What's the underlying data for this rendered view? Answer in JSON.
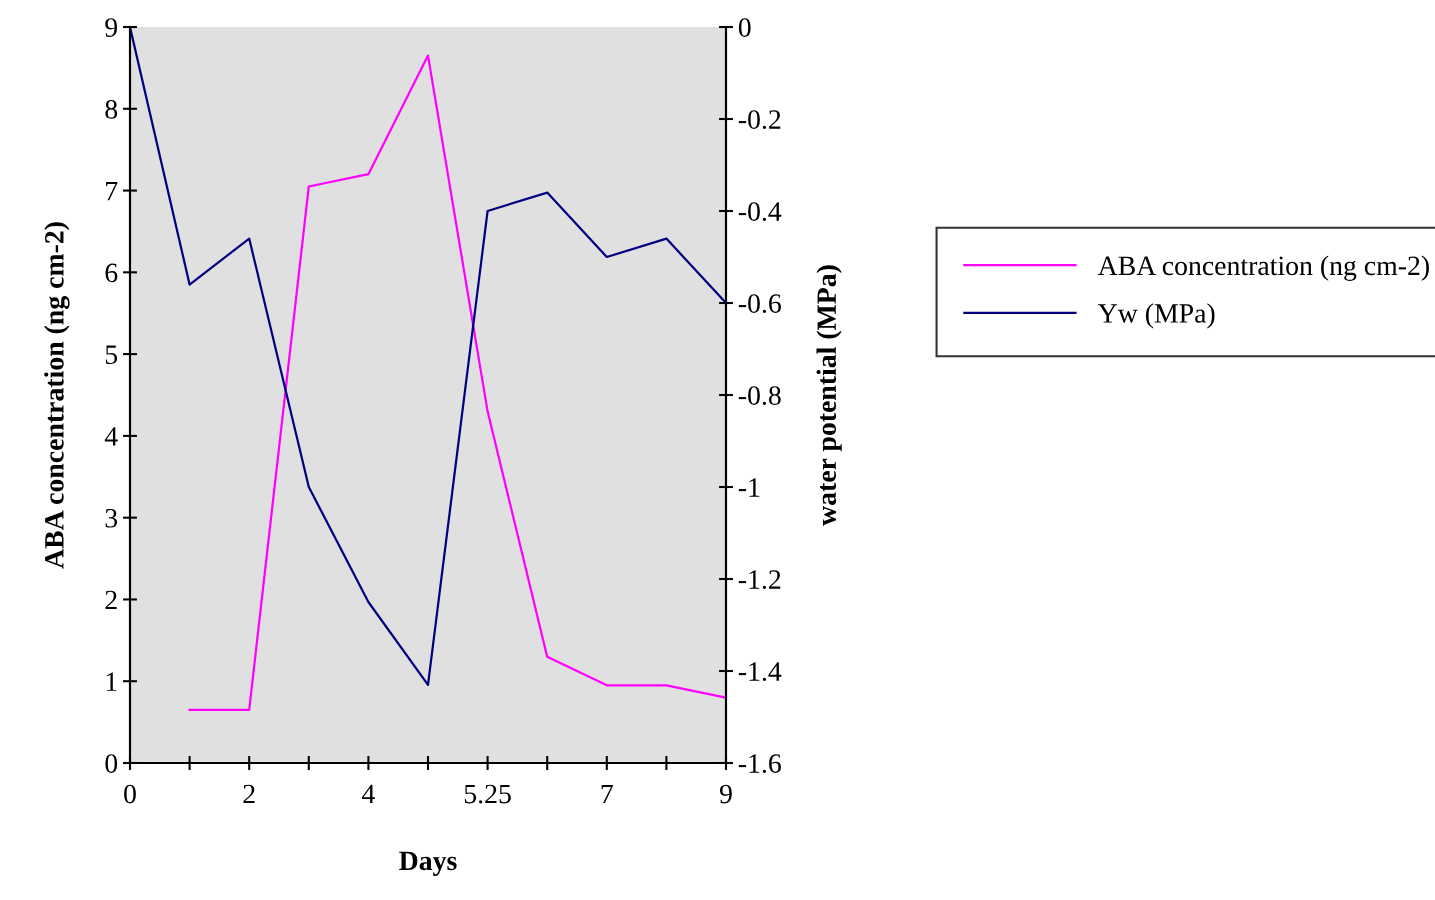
{
  "chart_data": {
    "type": "line",
    "xlabel": "Days",
    "ylabel": "ABA concentration (ng cm-2)",
    "y2label": "water potential (MPa)",
    "categories": [
      "0",
      null,
      "2",
      null,
      "4",
      null,
      "5.25",
      null,
      "7",
      null,
      "9"
    ],
    "series": [
      {
        "name": "ABA concentration (ng cm-2)",
        "color": "#ff00ff",
        "values": [
          null,
          0.65,
          0.65,
          7.05,
          7.2,
          8.65,
          4.3,
          1.3,
          0.95,
          0.95,
          0.8
        ]
      },
      {
        "name": "Yw (MPa)",
        "color": "#000080",
        "axis": "y2",
        "values": [
          0,
          -0.56,
          -0.46,
          -1.0,
          -1.25,
          -1.43,
          -0.4,
          -0.36,
          -0.5,
          -0.46,
          -0.6
        ]
      }
    ],
    "ylim": [
      0,
      9
    ],
    "yticks": [
      0,
      1,
      2,
      3,
      4,
      5,
      6,
      7,
      8,
      9
    ],
    "y2lim": [
      -1.6,
      0
    ],
    "y2ticks": [
      0,
      -0.2,
      -0.4,
      -0.6,
      -0.8,
      -1,
      -1.2,
      -1.4,
      -1.6
    ],
    "grid": false,
    "legend": "right",
    "marker": "none",
    "line_style": "solid"
  }
}
